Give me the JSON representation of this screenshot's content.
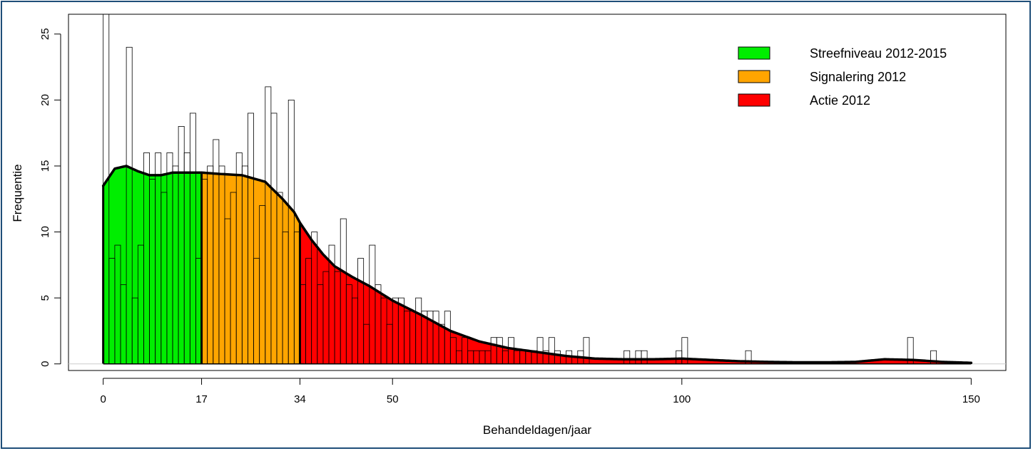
{
  "chart_data": {
    "type": "bar",
    "title": "",
    "xlabel": "Behandeldagen/jaar",
    "ylabel": "Frequentie",
    "xlim": [
      -6,
      156
    ],
    "ylim": [
      -0.5,
      26.5
    ],
    "x_ticks": [
      0,
      17,
      34,
      50,
      100,
      150
    ],
    "y_ticks": [
      0,
      5,
      10,
      15,
      20,
      25
    ],
    "grid": false,
    "legend_position": "top-right",
    "legend": [
      {
        "label": "Streefniveau 2012-2015",
        "color": "#00ee00"
      },
      {
        "label": "Signalering 2012",
        "color": "#ffa500"
      },
      {
        "label": "Actie 2012",
        "color": "#ff0000"
      }
    ],
    "histogram": {
      "bin_width": 1,
      "start": 0,
      "counts": [
        27,
        8,
        9,
        6,
        24,
        5,
        9,
        16,
        14,
        16,
        13,
        16,
        15,
        18,
        16,
        19,
        8,
        14,
        15,
        17,
        15,
        11,
        13,
        16,
        15,
        19,
        8,
        12,
        21,
        19,
        13,
        10,
        20,
        10,
        6,
        8,
        10,
        6,
        7,
        9,
        7,
        11,
        6,
        5,
        8,
        3,
        9,
        6,
        5,
        3,
        5,
        5,
        4,
        4,
        5,
        4,
        4,
        4,
        3,
        4,
        2,
        1,
        2,
        1,
        1,
        1,
        1,
        2,
        2,
        1,
        2,
        1,
        1,
        1,
        1,
        2,
        1,
        2,
        1,
        0,
        1,
        0,
        1,
        2,
        0,
        0,
        0,
        0,
        0,
        0,
        1,
        0,
        1,
        1,
        0,
        0,
        0,
        0,
        0,
        1,
        2,
        0,
        0,
        0,
        0,
        0,
        0,
        0,
        0,
        0,
        0,
        1,
        0,
        0,
        0,
        0,
        0,
        0,
        0,
        0,
        0,
        0,
        0,
        0,
        0,
        0,
        0,
        0,
        0,
        0,
        0,
        0,
        0,
        0,
        0,
        0,
        0,
        0,
        0,
        2,
        0,
        0,
        0,
        1,
        0,
        0,
        0,
        0,
        0,
        0,
        0,
        0
      ]
    },
    "density_curve": {
      "x": [
        0,
        2,
        4,
        6,
        8,
        10,
        12,
        14,
        17,
        20,
        24,
        28,
        31,
        33,
        34,
        36,
        38,
        40,
        43,
        46,
        50,
        55,
        60,
        65,
        70,
        75,
        80,
        85,
        90,
        95,
        100,
        105,
        110,
        115,
        120,
        125,
        130,
        135,
        140,
        145,
        150
      ],
      "y": [
        13.5,
        14.8,
        15.0,
        14.6,
        14.3,
        14.3,
        14.5,
        14.5,
        14.5,
        14.4,
        14.3,
        13.8,
        12.5,
        11.5,
        10.7,
        9.4,
        8.3,
        7.4,
        6.6,
        5.9,
        4.8,
        3.7,
        2.5,
        1.7,
        1.2,
        0.9,
        0.6,
        0.4,
        0.35,
        0.35,
        0.4,
        0.3,
        0.2,
        0.15,
        0.12,
        0.12,
        0.15,
        0.35,
        0.3,
        0.15,
        0.08
      ]
    },
    "zones": [
      {
        "name": "Streefniveau 2012-2015",
        "from": 0,
        "to": 17,
        "color": "#00ee00"
      },
      {
        "name": "Signalering 2012",
        "from": 17,
        "to": 34,
        "color": "#ffa500"
      },
      {
        "name": "Actie 2012",
        "from": 34,
        "to": 150,
        "color": "#ff0000"
      }
    ]
  }
}
